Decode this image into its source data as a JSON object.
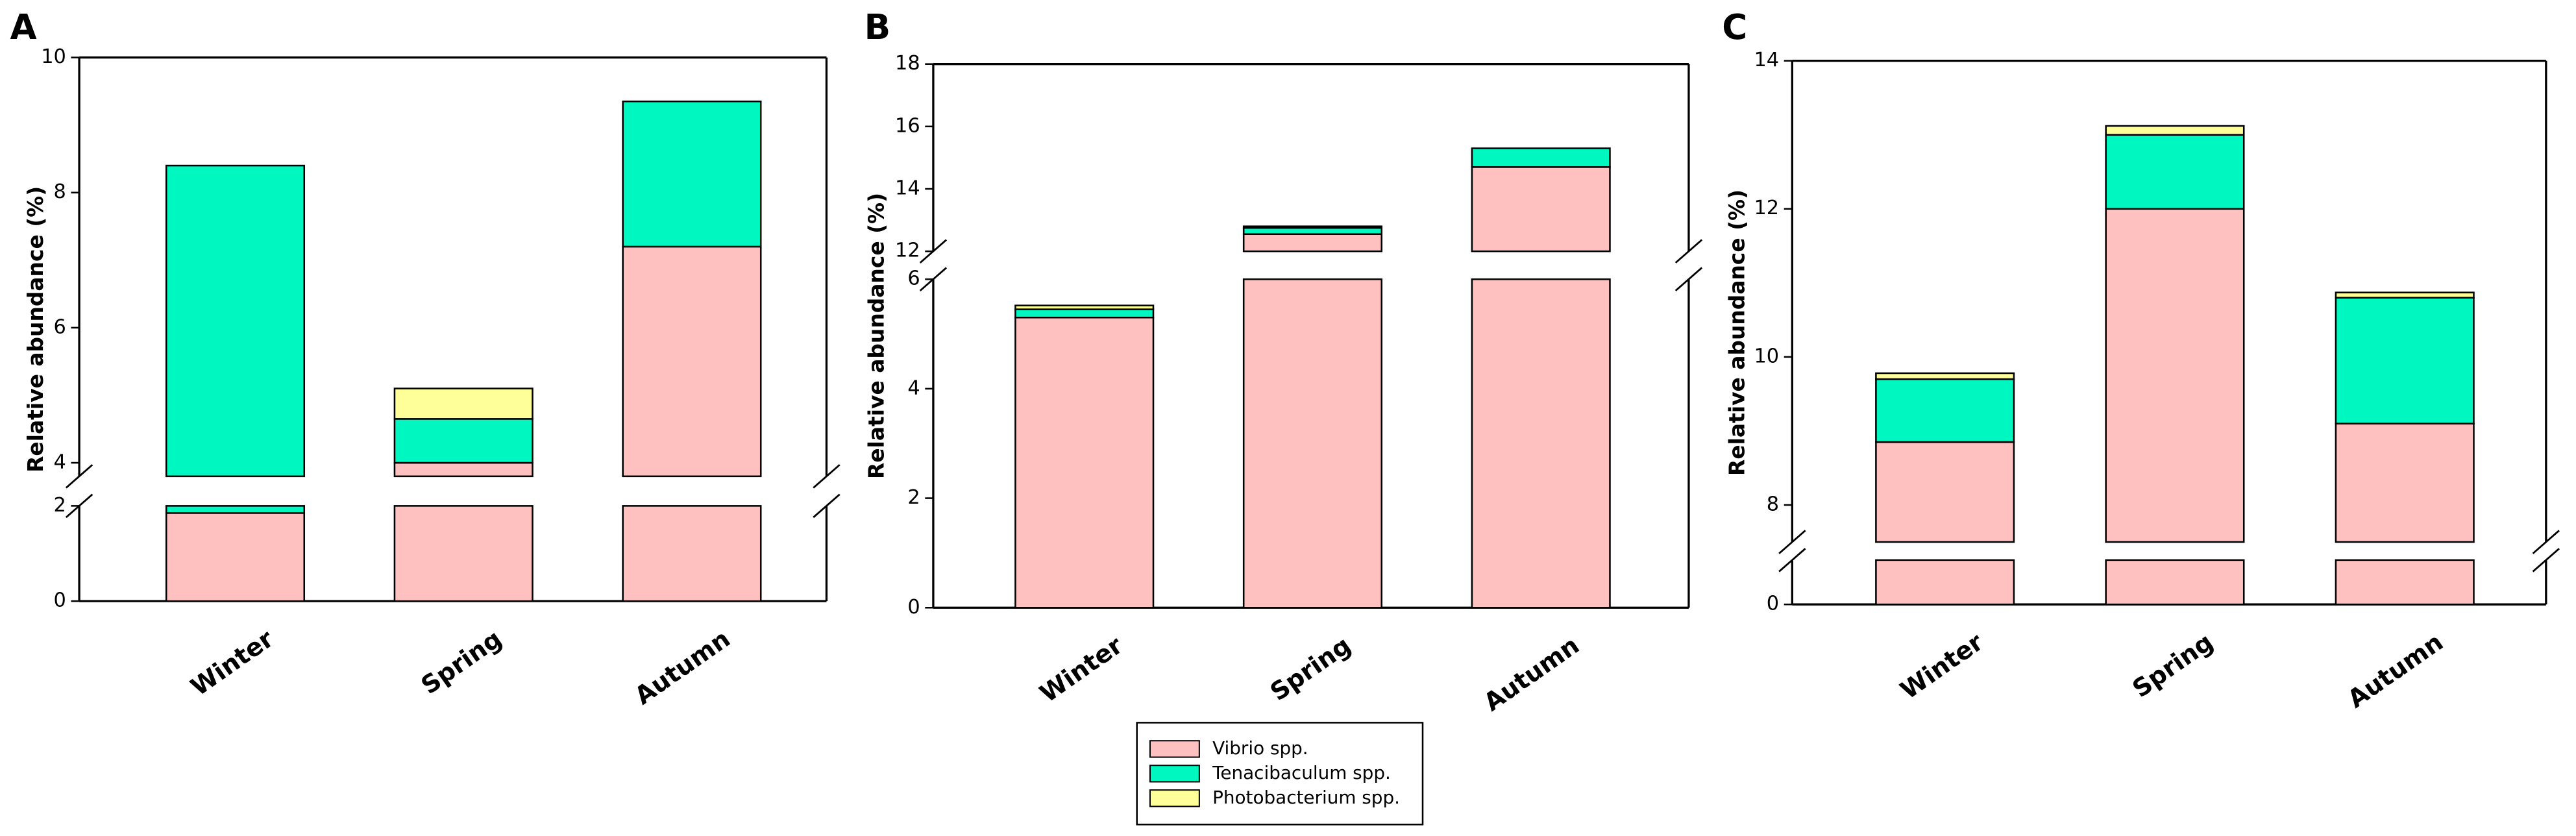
{
  "legend": {
    "series": [
      {
        "name": "Vibrio spp.",
        "color": "#ffc0c0"
      },
      {
        "name": "Tenacibaculum spp.",
        "color": "#00f7c0"
      },
      {
        "name": "Photobacterium spp.",
        "color": "#ffff99"
      }
    ]
  },
  "chart_data": [
    {
      "type": "bar",
      "stacked": true,
      "label": "A",
      "ylabel": "Relative abundance (%)",
      "categories": [
        "Winter",
        "Spring",
        "Autumn"
      ],
      "series": [
        {
          "values": [
            1.85,
            4.0,
            7.2
          ]
        },
        {
          "values": [
            6.55,
            0.65,
            2.15
          ]
        },
        {
          "values": [
            0,
            0.45,
            0
          ]
        }
      ],
      "ylim_segments": [
        [
          0,
          2
        ],
        [
          3.8,
          10
        ]
      ],
      "yticks": [
        0,
        2,
        4,
        6,
        8,
        10
      ]
    },
    {
      "type": "bar",
      "stacked": true,
      "label": "B",
      "ylabel": "Relative abundance (%)",
      "categories": [
        "Winter",
        "Spring",
        "Autumn"
      ],
      "series": [
        {
          "values": [
            5.3,
            12.55,
            14.7
          ]
        },
        {
          "values": [
            0.15,
            0.2,
            0.6
          ]
        },
        {
          "values": [
            0.07,
            0.05,
            0
          ]
        }
      ],
      "ylim_segments": [
        [
          0,
          6
        ],
        [
          12,
          18
        ]
      ],
      "yticks": [
        0,
        2,
        4,
        6,
        12,
        14,
        16,
        18
      ]
    },
    {
      "type": "bar",
      "stacked": true,
      "label": "C",
      "ylabel": "Relative abundance (%)",
      "categories": [
        "Winter",
        "Spring",
        "Autumn"
      ],
      "series": [
        {
          "values": [
            8.85,
            12.0,
            9.1
          ]
        },
        {
          "values": [
            0.85,
            1.0,
            1.7
          ]
        },
        {
          "values": [
            0.08,
            0.12,
            0.07
          ]
        }
      ],
      "ylim_segments": [
        [
          0,
          0.6
        ],
        [
          7.5,
          14
        ]
      ],
      "yticks": [
        0,
        8,
        10,
        12,
        14
      ]
    }
  ]
}
